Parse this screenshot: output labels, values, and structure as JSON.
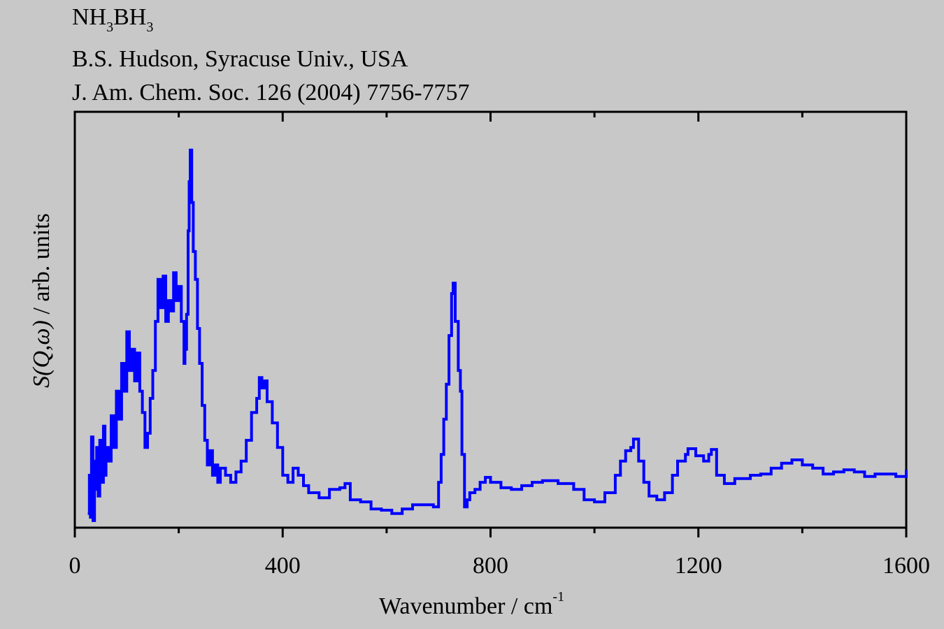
{
  "header": {
    "formula": {
      "p1": "NH",
      "s1": "3",
      "p2": "BH",
      "s2": "3"
    },
    "author": "B.S. Hudson, Syracuse Univ., USA",
    "reference": "J. Am. Chem. Soc. 126 (2004) 7756-7757"
  },
  "chart_data": {
    "type": "line",
    "style": "step",
    "title": "NH3BH3",
    "xlabel": {
      "text": "Wavenumber / cm",
      "sup": "-1"
    },
    "ylabel": {
      "italic": "S(Q,ω)",
      "rest": " / arb. units"
    },
    "xlim": [
      0,
      1600
    ],
    "ylim": [
      0,
      100
    ],
    "xticks": [
      0,
      400,
      800,
      1200,
      1600
    ],
    "xtick_labels": [
      "0",
      "400",
      "800",
      "1200",
      "1600"
    ],
    "xminor": [
      200,
      600,
      1000,
      1400
    ],
    "grid": false,
    "color": "#0000ff",
    "series": [
      {
        "name": "NH3BH3",
        "x": [
          25,
          28,
          30,
          32,
          35,
          38,
          40,
          42,
          45,
          48,
          50,
          55,
          58,
          60,
          65,
          70,
          75,
          80,
          85,
          90,
          95,
          100,
          105,
          110,
          115,
          120,
          125,
          130,
          135,
          140,
          145,
          150,
          155,
          160,
          165,
          170,
          175,
          180,
          185,
          190,
          195,
          200,
          205,
          210,
          212,
          215,
          218,
          220,
          222,
          225,
          228,
          232,
          236,
          240,
          245,
          250,
          255,
          260,
          265,
          270,
          275,
          280,
          290,
          300,
          310,
          320,
          330,
          340,
          350,
          355,
          360,
          365,
          370,
          380,
          390,
          400,
          410,
          420,
          430,
          440,
          450,
          470,
          490,
          510,
          520,
          530,
          550,
          570,
          590,
          610,
          630,
          650,
          670,
          690,
          700,
          705,
          710,
          715,
          720,
          725,
          728,
          732,
          738,
          742,
          745,
          750,
          755,
          760,
          770,
          780,
          790,
          800,
          820,
          840,
          860,
          880,
          900,
          930,
          960,
          980,
          1000,
          1020,
          1040,
          1050,
          1060,
          1070,
          1075,
          1085,
          1095,
          1105,
          1120,
          1135,
          1150,
          1160,
          1175,
          1180,
          1195,
          1210,
          1220,
          1225,
          1235,
          1250,
          1270,
          1300,
          1320,
          1340,
          1360,
          1380,
          1400,
          1420,
          1440,
          1460,
          1480,
          1500,
          1520,
          1540,
          1560,
          1580,
          1600
        ],
        "y": [
          3.4,
          12.6,
          2.5,
          21.8,
          1.7,
          16.0,
          9.2,
          19.3,
          7.6,
          21.0,
          10.9,
          24.4,
          12.6,
          19.3,
          16.0,
          26.9,
          19.3,
          32.8,
          26.1,
          39.5,
          32.8,
          47.1,
          37.8,
          42.9,
          35.3,
          42.0,
          32.8,
          27.7,
          19.3,
          22.7,
          31.1,
          37.8,
          49.6,
          59.7,
          52.9,
          60.5,
          49.6,
          54.6,
          52.1,
          61.3,
          54.6,
          58.0,
          49.6,
          39.5,
          42.9,
          51.3,
          71.4,
          83.2,
          90.8,
          78.2,
          66.4,
          59.7,
          47.9,
          39.5,
          29.4,
          21.0,
          15.1,
          18.5,
          12.6,
          15.1,
          10.9,
          14.3,
          12.6,
          10.9,
          13.4,
          16.0,
          21.0,
          27.7,
          31.1,
          36.1,
          33.6,
          35.3,
          30.3,
          25.2,
          19.3,
          12.6,
          10.9,
          14.3,
          12.6,
          10.1,
          8.4,
          7.2,
          9.2,
          9.6,
          10.6,
          6.7,
          6.2,
          4.5,
          4.2,
          3.4,
          4.5,
          5.5,
          5.5,
          5.0,
          10.9,
          17.6,
          26.1,
          34.5,
          46.2,
          56.3,
          58.8,
          49.6,
          37.8,
          32.8,
          17.6,
          5.0,
          6.7,
          8.4,
          9.2,
          10.9,
          12.1,
          10.9,
          9.6,
          9.2,
          10.1,
          10.9,
          11.3,
          10.6,
          9.2,
          6.7,
          6.2,
          8.4,
          12.6,
          16.0,
          18.5,
          19.3,
          21.3,
          16.0,
          10.9,
          7.6,
          6.7,
          8.4,
          12.6,
          16.0,
          17.6,
          19.0,
          17.3,
          16.0,
          17.6,
          18.8,
          12.6,
          10.6,
          11.8,
          12.6,
          12.9,
          14.3,
          15.5,
          16.3,
          15.1,
          14.3,
          12.9,
          13.4,
          13.9,
          13.4,
          12.3,
          12.9,
          12.9,
          12.3,
          13.9
        ]
      }
    ]
  }
}
